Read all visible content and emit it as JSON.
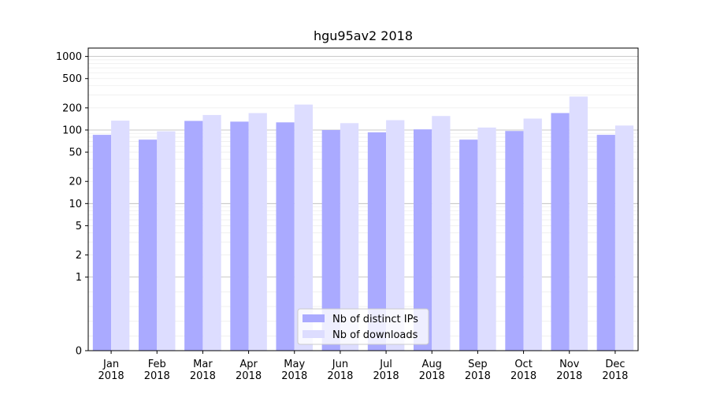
{
  "chart_data": {
    "type": "bar",
    "title": "hgu95av2 2018",
    "xlabel": "",
    "ylabel": "",
    "y_scale": "symlog",
    "ylim": [
      0,
      1300
    ],
    "y_ticks": [
      0,
      1,
      2,
      5,
      10,
      20,
      50,
      100,
      200,
      500,
      1000
    ],
    "y_tick_labels": [
      "0",
      "1",
      "2",
      "5",
      "10",
      "20",
      "50",
      "100",
      "200",
      "500",
      "1000"
    ],
    "categories": [
      "Jan\n2018",
      "Feb\n2018",
      "Mar\n2018",
      "Apr\n2018",
      "May\n2018",
      "Jun\n2018",
      "Jul\n2018",
      "Aug\n2018",
      "Sep\n2018",
      "Oct\n2018",
      "Nov\n2018",
      "Dec\n2018"
    ],
    "series": [
      {
        "name": "Nb of distinct IPs",
        "color": "#aaaaff",
        "values": [
          86,
          74,
          133,
          130,
          127,
          100,
          93,
          102,
          74,
          97,
          170,
          86
        ]
      },
      {
        "name": "Nb of downloads",
        "color": "#ddddff",
        "values": [
          134,
          96,
          160,
          170,
          222,
          124,
          136,
          155,
          108,
          143,
          285,
          115
        ]
      }
    ],
    "legend_position": "bottom-center",
    "grid": "horizontal"
  }
}
